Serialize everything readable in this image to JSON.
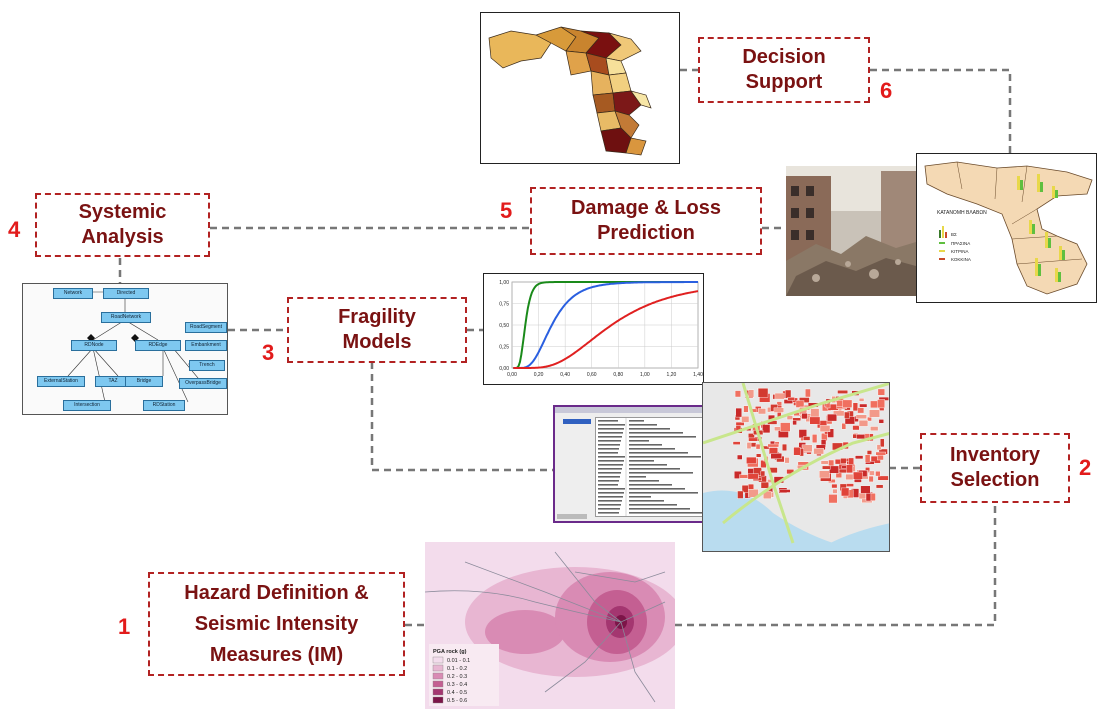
{
  "steps": [
    {
      "id": 1,
      "number": "1",
      "lines": [
        "Hazard Definition &",
        "Seismic Intensity",
        "Measures (IM)"
      ]
    },
    {
      "id": 2,
      "number": "2",
      "lines": [
        "Inventory",
        "Selection"
      ]
    },
    {
      "id": 3,
      "number": "3",
      "lines": [
        "Fragility",
        "Models"
      ]
    },
    {
      "id": 4,
      "number": "4",
      "lines": [
        "Systemic",
        "Analysis"
      ]
    },
    {
      "id": 5,
      "number": "5",
      "lines": [
        "Damage & Loss",
        "Prediction"
      ]
    },
    {
      "id": 6,
      "number": "6",
      "lines": [
        "Decision",
        "Support"
      ]
    }
  ],
  "fragility_chart": {
    "y_ticks": [
      "1,00",
      "0,75",
      "0,50",
      "0,25",
      "0,00"
    ],
    "x_ticks": [
      "0,00",
      "0,20",
      "0,40",
      "0,60",
      "0,80",
      "1,00",
      "1,20",
      "1,40"
    ],
    "curve_colors": [
      "#1a8a1a",
      "#2a5fe0",
      "#e02020"
    ]
  },
  "pga_legend": {
    "title": "PGA rock (g)",
    "items": [
      "0.01 - 0.1",
      "0.1 - 0.2",
      "0.2 - 0.3",
      "0.3 - 0.4",
      "0.4 - 0.5",
      "0.5 - 0.6"
    ],
    "colors": [
      "#f3dcec",
      "#e8b6d2",
      "#d98bb4",
      "#c45f92",
      "#a43670",
      "#7c1448"
    ]
  },
  "damage_map": {
    "title": "ΚΑΤΑΝΟΜΗ ΒΛΑΒΩΝ",
    "legend": [
      "ΒΣ",
      "ΠΡΑΣΙΝΑ",
      "ΚΙΤΡΙΝΑ",
      "ΚΟΚΚΙΝΑ"
    ],
    "colors": [
      "#3a7a2a",
      "#5fbf3f",
      "#e8d84a",
      "#c84a2a"
    ]
  },
  "uml": {
    "nodes": [
      "Network",
      "Directed",
      "RoadNetwork",
      "RDNode",
      "RDEdge",
      "RoadSegment",
      "Embankment",
      "Trench",
      "ExternalStation",
      "TAZ",
      "Bridge",
      "OverpassBridge",
      "Intersection",
      "RDStation"
    ]
  }
}
